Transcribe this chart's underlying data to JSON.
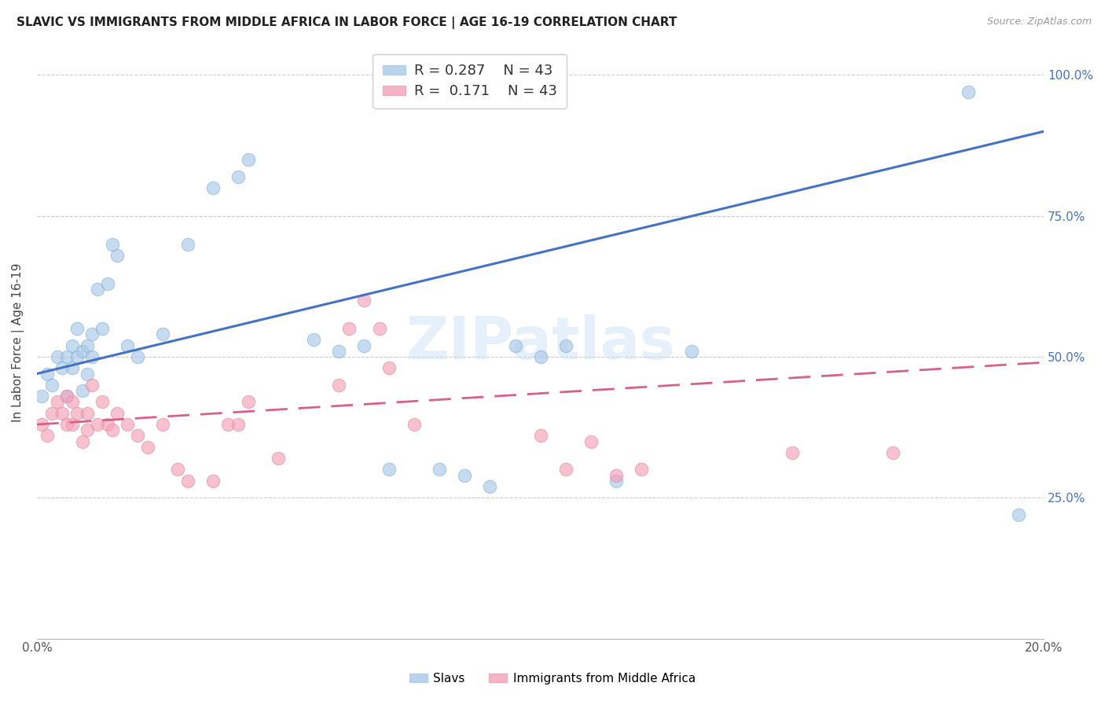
{
  "title": "SLAVIC VS IMMIGRANTS FROM MIDDLE AFRICA IN LABOR FORCE | AGE 16-19 CORRELATION CHART",
  "source": "Source: ZipAtlas.com",
  "ylabel": "In Labor Force | Age 16-19",
  "xmin": 0.0,
  "xmax": 0.2,
  "ymin": 0.0,
  "ymax": 1.05,
  "r_slavs": 0.287,
  "n_slavs": 43,
  "r_africa": 0.171,
  "n_africa": 43,
  "legend_label_slavs": "Slavs",
  "legend_label_africa": "Immigrants from Middle Africa",
  "blue_color": "#a8c8e8",
  "pink_color": "#f4a0b8",
  "line_blue": "#4472c4",
  "line_pink": "#d9608a",
  "right_axis_color": "#4472c4",
  "slavs_x": [
    0.001,
    0.002,
    0.003,
    0.004,
    0.005,
    0.006,
    0.006,
    0.007,
    0.007,
    0.008,
    0.008,
    0.009,
    0.009,
    0.01,
    0.01,
    0.011,
    0.011,
    0.012,
    0.013,
    0.014,
    0.015,
    0.016,
    0.018,
    0.02,
    0.025,
    0.03,
    0.035,
    0.04,
    0.042,
    0.055,
    0.06,
    0.065,
    0.07,
    0.08,
    0.085,
    0.09,
    0.095,
    0.1,
    0.105,
    0.115,
    0.13,
    0.185,
    0.195
  ],
  "slavs_y": [
    0.43,
    0.47,
    0.45,
    0.5,
    0.48,
    0.43,
    0.5,
    0.52,
    0.48,
    0.55,
    0.5,
    0.44,
    0.51,
    0.52,
    0.47,
    0.54,
    0.5,
    0.62,
    0.55,
    0.63,
    0.7,
    0.68,
    0.52,
    0.5,
    0.54,
    0.7,
    0.8,
    0.82,
    0.85,
    0.53,
    0.51,
    0.52,
    0.3,
    0.3,
    0.29,
    0.27,
    0.52,
    0.5,
    0.52,
    0.28,
    0.51,
    0.97,
    0.22
  ],
  "africa_x": [
    0.001,
    0.002,
    0.003,
    0.004,
    0.005,
    0.006,
    0.006,
    0.007,
    0.007,
    0.008,
    0.009,
    0.01,
    0.01,
    0.011,
    0.012,
    0.013,
    0.014,
    0.015,
    0.016,
    0.018,
    0.02,
    0.022,
    0.025,
    0.028,
    0.03,
    0.035,
    0.038,
    0.04,
    0.042,
    0.048,
    0.06,
    0.062,
    0.065,
    0.068,
    0.07,
    0.075,
    0.1,
    0.105,
    0.11,
    0.115,
    0.12,
    0.15,
    0.17
  ],
  "africa_y": [
    0.38,
    0.36,
    0.4,
    0.42,
    0.4,
    0.38,
    0.43,
    0.42,
    0.38,
    0.4,
    0.35,
    0.37,
    0.4,
    0.45,
    0.38,
    0.42,
    0.38,
    0.37,
    0.4,
    0.38,
    0.36,
    0.34,
    0.38,
    0.3,
    0.28,
    0.28,
    0.38,
    0.38,
    0.42,
    0.32,
    0.45,
    0.55,
    0.6,
    0.55,
    0.48,
    0.38,
    0.36,
    0.3,
    0.35,
    0.29,
    0.3,
    0.33,
    0.33
  ]
}
